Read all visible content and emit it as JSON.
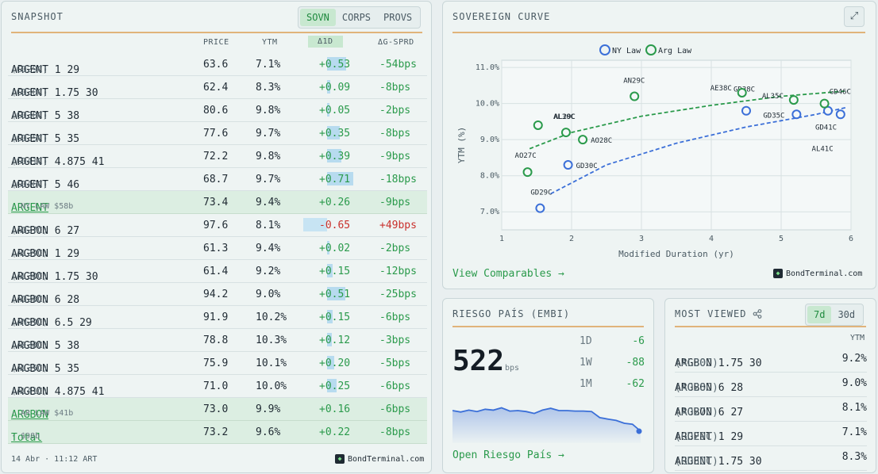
{
  "snapshot": {
    "title": "SNAPSHOT",
    "tabs": [
      "SOVN",
      "CORPS",
      "PROVS"
    ],
    "active_tab": "SOVN",
    "headers": {
      "price": "PRICE",
      "ytm": "YTM",
      "d1": "Δ1D",
      "gsprd": "ΔG-SPRD"
    },
    "rows": [
      {
        "type": "bond",
        "name": "ARGENT 1 29",
        "ticker": "(GD29C)",
        "price": "63.6",
        "ytm": "7.1%",
        "d1": "+0.53",
        "d1_value": 0.53,
        "gsprd": "-54bps",
        "gs_dir": "pos"
      },
      {
        "type": "bond",
        "name": "ARGENT 1.75 30",
        "ticker": "(GD30C)",
        "price": "62.4",
        "ytm": "8.3%",
        "d1": "+0.09",
        "d1_value": 0.09,
        "gsprd": "-8bps",
        "gs_dir": "pos"
      },
      {
        "type": "bond",
        "name": "ARGENT 5 38",
        "ticker": "(GD38C)",
        "price": "80.6",
        "ytm": "9.8%",
        "d1": "+0.05",
        "d1_value": 0.05,
        "gsprd": "-2bps",
        "gs_dir": "pos"
      },
      {
        "type": "bond",
        "name": "ARGENT 5 35",
        "ticker": "(GD35C)",
        "price": "77.6",
        "ytm": "9.7%",
        "d1": "+0.35",
        "d1_value": 0.35,
        "gsprd": "-8bps",
        "gs_dir": "pos"
      },
      {
        "type": "bond",
        "name": "ARGENT 4.875 41",
        "ticker": "(GD41C)",
        "price": "72.2",
        "ytm": "9.8%",
        "d1": "+0.39",
        "d1_value": 0.39,
        "gsprd": "-9bps",
        "gs_dir": "pos"
      },
      {
        "type": "bond",
        "name": "ARGENT 5 46",
        "ticker": "(GD46C)",
        "price": "68.7",
        "ytm": "9.7%",
        "d1": "+0.71",
        "d1_value": 0.71,
        "gsprd": "-18bps",
        "gs_dir": "pos"
      },
      {
        "type": "sub",
        "name": "ARGENT",
        "note": "· NY LAW $58b",
        "price": "73.4",
        "ytm": "9.4%",
        "d1": "+0.26",
        "d1_value": 0,
        "gsprd": "-9bps",
        "gs_dir": "pos"
      },
      {
        "type": "bond",
        "name": "ARGBON 6 27",
        "ticker": "(AO27C)",
        "price": "97.6",
        "ytm": "8.1%",
        "d1": "-0.65",
        "d1_value": -0.65,
        "gsprd": "+49bps",
        "gs_dir": "neg"
      },
      {
        "type": "bond",
        "name": "ARGBON 1 29",
        "ticker": "(AL29C)",
        "price": "61.3",
        "ytm": "9.4%",
        "d1": "+0.02",
        "d1_value": 0.02,
        "gsprd": "-2bps",
        "gs_dir": "pos"
      },
      {
        "type": "bond",
        "name": "ARGBON 1.75 30",
        "ticker": "(AL30C)",
        "price": "61.4",
        "ytm": "9.2%",
        "d1": "+0.15",
        "d1_value": 0.15,
        "gsprd": "-12bps",
        "gs_dir": "pos"
      },
      {
        "type": "bond",
        "name": "ARGBON 6 28",
        "ticker": "(AO28C)",
        "price": "94.2",
        "ytm": "9.0%",
        "d1": "+0.51",
        "d1_value": 0.51,
        "gsprd": "-25bps",
        "gs_dir": "pos"
      },
      {
        "type": "bond",
        "name": "ARGBON 6.5 29",
        "ticker": "(AN29C)",
        "price": "91.9",
        "ytm": "10.2%",
        "d1": "+0.15",
        "d1_value": 0.15,
        "gsprd": "-6bps",
        "gs_dir": "pos"
      },
      {
        "type": "bond",
        "name": "ARGBON 5 38",
        "ticker": "(AE38C)",
        "price": "78.8",
        "ytm": "10.3%",
        "d1": "+0.12",
        "d1_value": 0.12,
        "gsprd": "-3bps",
        "gs_dir": "pos"
      },
      {
        "type": "bond",
        "name": "ARGBON 5 35",
        "ticker": "(AL35C)",
        "price": "75.9",
        "ytm": "10.1%",
        "d1": "+0.20",
        "d1_value": 0.2,
        "gsprd": "-5bps",
        "gs_dir": "pos"
      },
      {
        "type": "bond",
        "name": "ARGBON 4.875 41",
        "ticker": "(AL41C)",
        "price": "71.0",
        "ytm": "10.0%",
        "d1": "+0.25",
        "d1_value": 0.25,
        "gsprd": "-6bps",
        "gs_dir": "pos"
      },
      {
        "type": "sub",
        "name": "ARGBON",
        "note": "· AR LAW $41b",
        "price": "73.0",
        "ytm": "9.9%",
        "d1": "+0.16",
        "d1_value": 0,
        "gsprd": "-6bps",
        "gs_dir": "pos"
      },
      {
        "type": "sub",
        "name": "Total",
        "note": "· $98b",
        "price": "73.2",
        "ytm": "9.6%",
        "d1": "+0.22",
        "d1_value": 0,
        "gsprd": "-8bps",
        "gs_dir": "pos"
      }
    ],
    "footer_time": "14 Abr · 11:12 ART",
    "brand": "BondTerminal.com"
  },
  "curve": {
    "title": "SOVEREIGN CURVE",
    "view_link": "View Comparables →",
    "brand": "BondTerminal.com"
  },
  "chart_data": {
    "type": "scatter",
    "title": "SOVEREIGN CURVE",
    "xlabel": "Modified Duration (yr)",
    "ylabel": "YTM (%)",
    "xlim": [
      1,
      6
    ],
    "ylim": [
      6.5,
      11.2
    ],
    "x_ticks": [
      1,
      2,
      3,
      4,
      5,
      6
    ],
    "y_ticks": [
      7.0,
      8.0,
      9.0,
      10.0,
      11.0
    ],
    "y_tick_labels": [
      "7.0%",
      "8.0%",
      "9.0%",
      "10.0%",
      "11.0%"
    ],
    "legend": [
      "NY Law",
      "Arg Law"
    ],
    "series": [
      {
        "name": "NY Law",
        "color": "#3b6fd8",
        "points": [
          {
            "label": "GD29C",
            "x": 1.55,
            "y": 7.1
          },
          {
            "label": "GD30C",
            "x": 1.95,
            "y": 8.3
          },
          {
            "label": "GD38C",
            "x": 4.5,
            "y": 9.8
          },
          {
            "label": "GD35C",
            "x": 5.22,
            "y": 9.7
          },
          {
            "label": "GD41C",
            "x": 5.67,
            "y": 9.8
          },
          {
            "label": "GD46C",
            "x": 5.85,
            "y": 9.7
          }
        ],
        "curve": [
          [
            1.7,
            7.5
          ],
          [
            2.5,
            8.3
          ],
          [
            3.5,
            8.9
          ],
          [
            4.5,
            9.35
          ],
          [
            5.5,
            9.7
          ],
          [
            5.95,
            9.9
          ]
        ]
      },
      {
        "name": "Arg Law",
        "color": "#2a9a4b",
        "points": [
          {
            "label": "AO27C",
            "x": 1.37,
            "y": 8.1
          },
          {
            "label": "AL29C",
            "x": 1.52,
            "y": 9.4
          },
          {
            "label": "AL30C",
            "x": 1.92,
            "y": 9.2
          },
          {
            "label": "AO28C",
            "x": 2.16,
            "y": 9.0
          },
          {
            "label": "AN29C",
            "x": 2.9,
            "y": 10.2
          },
          {
            "label": "AE38C",
            "x": 4.44,
            "y": 10.3
          },
          {
            "label": "AL35C",
            "x": 5.18,
            "y": 10.1
          },
          {
            "label": "AL41C",
            "x": 5.62,
            "y": 10.0
          }
        ],
        "curve": [
          [
            1.4,
            8.75
          ],
          [
            2.0,
            9.2
          ],
          [
            3.0,
            9.65
          ],
          [
            4.0,
            9.95
          ],
          [
            5.0,
            10.2
          ],
          [
            5.95,
            10.35
          ]
        ]
      }
    ]
  },
  "riesgo": {
    "title": "RIESGO PAÍS (EMBI)",
    "value": "522",
    "unit": "bps",
    "changes": [
      {
        "label": "1D",
        "value": "-6"
      },
      {
        "label": "1W",
        "value": "-88"
      },
      {
        "label": "1M",
        "value": "-62"
      }
    ],
    "sparkline": [
      610,
      604,
      612,
      606,
      616,
      612,
      622,
      608,
      610,
      606,
      598,
      612,
      620,
      610,
      610,
      608,
      608,
      606,
      580,
      574,
      568,
      556,
      552,
      522
    ],
    "link": "Open Riesgo País →"
  },
  "most_viewed": {
    "title": "MOST VIEWED",
    "tabs": [
      "7d",
      "30d"
    ],
    "active_tab": "7d",
    "ytm_header": "YTM",
    "rows": [
      {
        "name": "ARGBON 1.75 30",
        "ticker": "(AL30C)",
        "ytm": "9.2%"
      },
      {
        "name": "ARGBON 6 28",
        "ticker": "(AO28C)",
        "ytm": "9.0%"
      },
      {
        "name": "ARGBON 6 27",
        "ticker": "(AO27C)",
        "ytm": "8.1%"
      },
      {
        "name": "ARGENT 1 29",
        "ticker": "(GD29C)",
        "ytm": "7.1%"
      },
      {
        "name": "ARGENT 1.75 30",
        "ticker": "(GD30C)",
        "ytm": "8.3%"
      }
    ]
  }
}
